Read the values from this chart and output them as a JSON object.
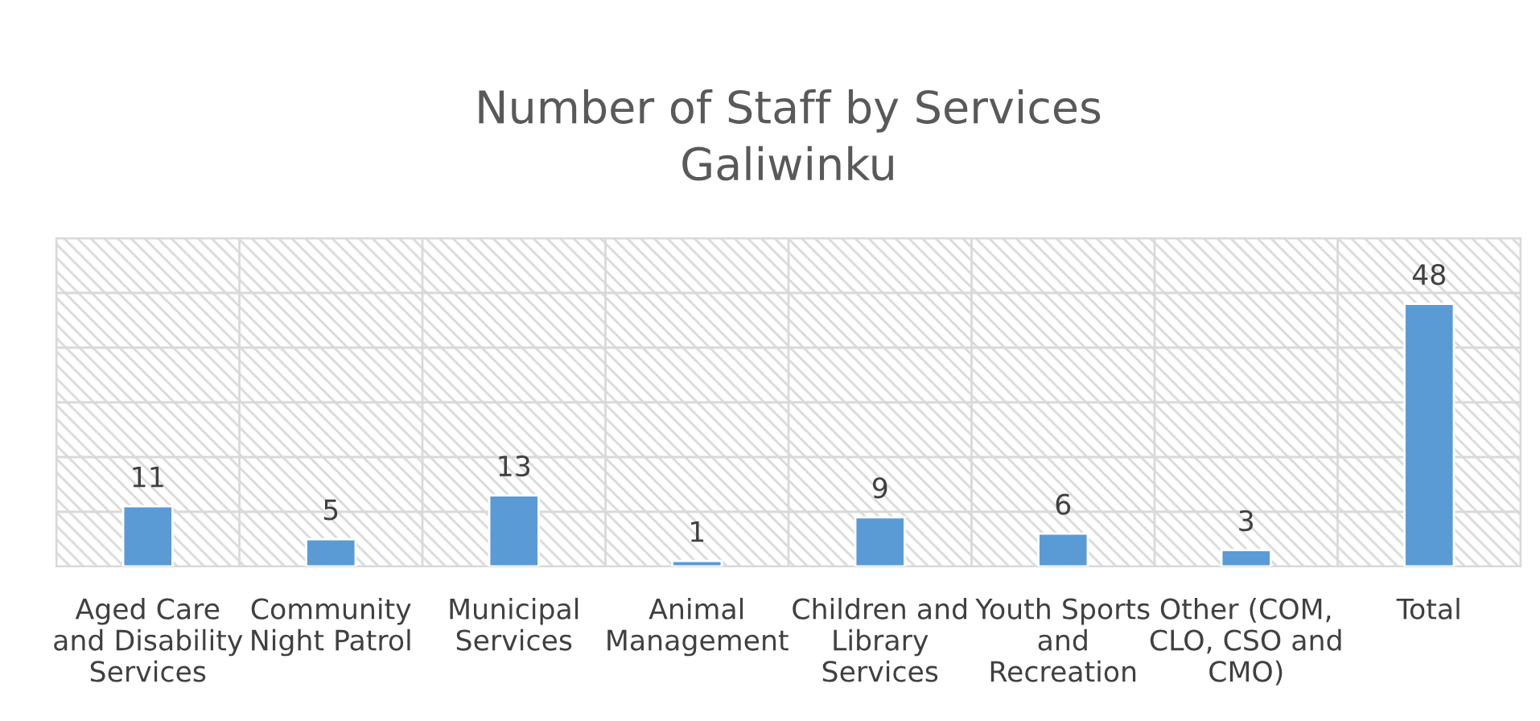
{
  "chart_data": {
    "type": "bar",
    "title": "Number of Staff by Services\nGaliwinku",
    "categories": [
      "Aged Care\nand Disability\nServices",
      "Community\nNight Patrol",
      "Municipal\nServices",
      "Animal\nManagement",
      "Children and\nLibrary\nServices",
      "Youth Sports\nand\nRecreation",
      "Other (COM,\nCLO, CSO and\nCMO)",
      "Total"
    ],
    "values": [
      11,
      5,
      13,
      1,
      9,
      6,
      3,
      48
    ],
    "color": "#5b9bd5",
    "ylim": [
      0,
      60
    ],
    "yticks": [
      {
        "value": 0,
        "label": null
      },
      {
        "value": 10,
        "label": null
      },
      {
        "value": 20,
        "label": null
      },
      {
        "value": 30,
        "label": null
      },
      {
        "value": 40,
        "label": null
      },
      {
        "value": 50,
        "label": null
      },
      {
        "value": 60,
        "label": null
      }
    ],
    "grid": true,
    "data_labels": true,
    "tick_labels": "x"
  }
}
